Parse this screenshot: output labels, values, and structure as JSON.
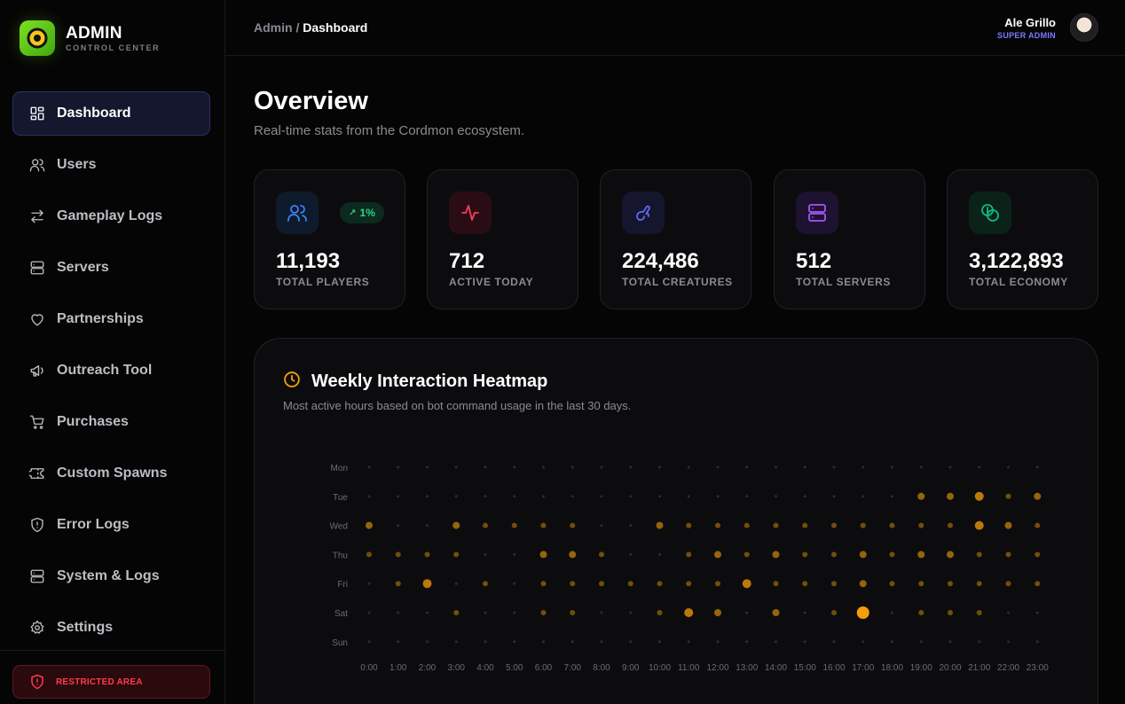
{
  "brand": {
    "title": "ADMIN",
    "subtitle": "CONTROL CENTER"
  },
  "nav": [
    {
      "label": "Dashboard",
      "icon": "dashboard-icon",
      "active": true
    },
    {
      "label": "Users",
      "icon": "users-icon"
    },
    {
      "label": "Gameplay Logs",
      "icon": "arrows-swap-icon"
    },
    {
      "label": "Servers",
      "icon": "server-icon"
    },
    {
      "label": "Partnerships",
      "icon": "heart-icon"
    },
    {
      "label": "Outreach Tool",
      "icon": "megaphone-icon"
    },
    {
      "label": "Purchases",
      "icon": "cart-icon"
    },
    {
      "label": "Custom Spawns",
      "icon": "ticket-icon"
    },
    {
      "label": "Error Logs",
      "icon": "shield-alert-icon"
    },
    {
      "label": "System & Logs",
      "icon": "server-icon"
    },
    {
      "label": "Settings",
      "icon": "gear-icon"
    }
  ],
  "restricted": {
    "label": "RESTRICTED AREA"
  },
  "breadcrumb": {
    "root": "Admin",
    "separator": " / ",
    "current": "Dashboard"
  },
  "user": {
    "name": "Ale Grillo",
    "role": "SUPER ADMIN"
  },
  "overview": {
    "title": "Overview",
    "subtitle": "Real-time stats from the Cordmon ecosystem."
  },
  "stats": [
    {
      "value": "11,193",
      "label": "TOTAL PLAYERS",
      "icon": "users-icon",
      "color": "#3b82f6",
      "bg": "#0f1a2c",
      "badge": "1%"
    },
    {
      "value": "712",
      "label": "ACTIVE TODAY",
      "icon": "activity-icon",
      "color": "#f43f5e",
      "bg": "#2a0d14"
    },
    {
      "value": "224,486",
      "label": "TOTAL CREATURES",
      "icon": "rabbit-icon",
      "color": "#6366f1",
      "bg": "#15152e"
    },
    {
      "value": "512",
      "label": "TOTAL SERVERS",
      "icon": "server-icon",
      "color": "#a855f7",
      "bg": "#1d1230"
    },
    {
      "value": "3,122,893",
      "label": "TOTAL ECONOMY",
      "icon": "coins-icon",
      "color": "#10b981",
      "bg": "#0b2219"
    }
  ],
  "heatmap": {
    "title": "Weekly Interaction Heatmap",
    "subtitle": "Most active hours based on bot command usage in the last 30 days.",
    "accent": "#f59e0b"
  },
  "chart_data": {
    "type": "heatmap",
    "title": "Weekly Interaction Heatmap",
    "rows": [
      "Mon",
      "Tue",
      "Wed",
      "Thu",
      "Fri",
      "Sat",
      "Sun"
    ],
    "columns": [
      "0:00",
      "1:00",
      "2:00",
      "3:00",
      "4:00",
      "5:00",
      "6:00",
      "7:00",
      "8:00",
      "9:00",
      "10:00",
      "11:00",
      "12:00",
      "13:00",
      "14:00",
      "15:00",
      "16:00",
      "17:00",
      "18:00",
      "19:00",
      "20:00",
      "21:00",
      "22:00",
      "23:00"
    ],
    "values": [
      [
        0,
        0,
        0,
        0,
        0,
        0,
        0,
        0,
        0,
        0,
        0,
        0,
        0,
        0,
        0,
        0,
        0,
        0,
        0,
        0,
        0,
        0,
        0,
        0
      ],
      [
        0,
        0,
        0,
        0,
        0,
        0,
        0,
        0,
        0,
        0,
        0,
        0,
        0,
        0,
        0,
        0,
        0,
        0,
        0,
        2,
        2,
        3,
        1,
        2
      ],
      [
        2,
        0,
        0,
        2,
        1,
        1,
        1,
        1,
        0,
        0,
        2,
        1,
        1,
        1,
        1,
        1,
        1,
        1,
        1,
        1,
        1,
        3,
        2,
        1
      ],
      [
        1,
        1,
        1,
        1,
        0,
        0,
        2,
        2,
        1,
        0,
        0,
        1,
        2,
        1,
        2,
        1,
        1,
        2,
        1,
        2,
        2,
        1,
        1,
        1
      ],
      [
        0,
        1,
        3,
        0,
        1,
        0,
        1,
        1,
        1,
        1,
        1,
        1,
        1,
        3,
        1,
        1,
        1,
        2,
        1,
        1,
        1,
        1,
        1,
        1
      ],
      [
        0,
        0,
        0,
        1,
        0,
        0,
        1,
        1,
        0,
        0,
        1,
        3,
        2,
        0,
        2,
        0,
        1,
        4,
        0,
        1,
        1,
        1,
        0,
        0
      ],
      [
        0,
        0,
        0,
        0,
        0,
        0,
        0,
        0,
        0,
        0,
        0,
        0,
        0,
        0,
        0,
        0,
        0,
        0,
        0,
        0,
        0,
        0,
        0,
        0
      ]
    ],
    "max": 4
  }
}
